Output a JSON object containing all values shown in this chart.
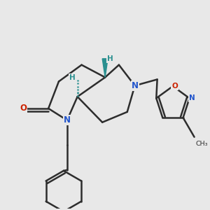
{
  "background_color": "#e8e8e8",
  "bond_color": "#2d2d2d",
  "bond_width": 1.8,
  "N_color": "#2255cc",
  "O_color": "#cc2200",
  "stereo_color": "#2a9090",
  "font_size_atom": 8.5,
  "font_size_H": 7.5,
  "xlim": [
    0,
    3.0
  ],
  "ylim": [
    0,
    3.0
  ],
  "figsize": [
    3.0,
    3.0
  ],
  "dpi": 100
}
